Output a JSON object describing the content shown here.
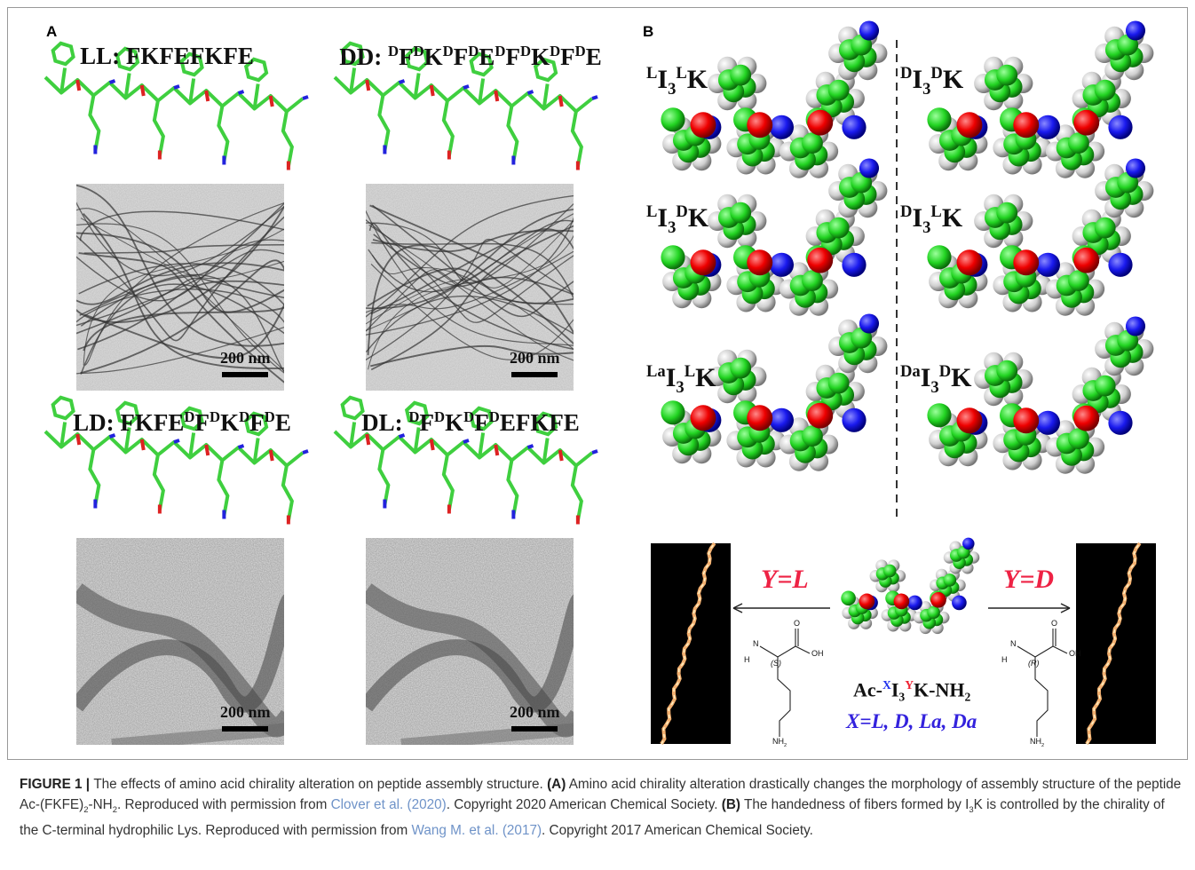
{
  "panel_a": {
    "label": "A",
    "peptides": [
      {
        "name": [
          {
            "text": "LL: FKFEFKFE"
          }
        ],
        "scale_bar": "200 nm"
      },
      {
        "name": [
          {
            "text": "DD: "
          },
          {
            "text": "D",
            "style": "sup"
          },
          {
            "text": "F"
          },
          {
            "text": "D",
            "style": "sup"
          },
          {
            "text": "K"
          },
          {
            "text": "D",
            "style": "sup"
          },
          {
            "text": "F"
          },
          {
            "text": "D",
            "style": "sup"
          },
          {
            "text": "E"
          },
          {
            "text": "D",
            "style": "sup"
          },
          {
            "text": "F"
          },
          {
            "text": "D",
            "style": "sup"
          },
          {
            "text": "K"
          },
          {
            "text": "D",
            "style": "sup"
          },
          {
            "text": "F"
          },
          {
            "text": "D",
            "style": "sup"
          },
          {
            "text": "E"
          }
        ],
        "scale_bar": "200 nm"
      },
      {
        "name": [
          {
            "text": "LD: FKFE"
          },
          {
            "text": "D",
            "style": "sup"
          },
          {
            "text": "F"
          },
          {
            "text": "D",
            "style": "sup"
          },
          {
            "text": "K"
          },
          {
            "text": "D",
            "style": "sup"
          },
          {
            "text": "F"
          },
          {
            "text": "D",
            "style": "sup"
          },
          {
            "text": "E"
          }
        ],
        "scale_bar": "200 nm"
      },
      {
        "name": [
          {
            "text": "DL: "
          },
          {
            "text": "D",
            "style": "sup"
          },
          {
            "text": "F"
          },
          {
            "text": "D",
            "style": "sup"
          },
          {
            "text": "K"
          },
          {
            "text": "D",
            "style": "sup"
          },
          {
            "text": "F"
          },
          {
            "text": "D",
            "style": "sup"
          },
          {
            "text": "EFKFE"
          }
        ],
        "scale_bar": "200 nm"
      }
    ]
  },
  "panel_b": {
    "label": "B",
    "models": [
      [
        {
          "text": "L",
          "style": "sup"
        },
        {
          "text": "I"
        },
        {
          "text": "3",
          "style": "sub"
        },
        {
          "text": "L",
          "style": "sup"
        },
        {
          "text": "K"
        }
      ],
      [
        {
          "text": "D",
          "style": "sup"
        },
        {
          "text": "I"
        },
        {
          "text": "3",
          "style": "sub"
        },
        {
          "text": "D",
          "style": "sup"
        },
        {
          "text": "K"
        }
      ],
      [
        {
          "text": "L",
          "style": "sup"
        },
        {
          "text": "I"
        },
        {
          "text": "3",
          "style": "sub"
        },
        {
          "text": "D",
          "style": "sup"
        },
        {
          "text": "K"
        }
      ],
      [
        {
          "text": "D",
          "style": "sup"
        },
        {
          "text": "I"
        },
        {
          "text": "3",
          "style": "sub"
        },
        {
          "text": "L",
          "style": "sup"
        },
        {
          "text": "K"
        }
      ],
      [
        {
          "text": "La",
          "style": "sup"
        },
        {
          "text": "I"
        },
        {
          "text": "3",
          "style": "sub"
        },
        {
          "text": "L",
          "style": "sup"
        },
        {
          "text": "K"
        }
      ],
      [
        {
          "text": "Da",
          "style": "sup"
        },
        {
          "text": "I"
        },
        {
          "text": "3",
          "style": "sub"
        },
        {
          "text": "D",
          "style": "sup"
        },
        {
          "text": "K"
        }
      ]
    ],
    "left_arrow": "Y=L",
    "right_arrow": "Y=D",
    "formula": [
      {
        "text": "Ac-"
      },
      {
        "text": "X",
        "style": "sup",
        "color": "#2233ee"
      },
      {
        "text": "I"
      },
      {
        "text": "3",
        "style": "sub"
      },
      {
        "text": "Y",
        "style": "sup",
        "color": "#ee2233"
      },
      {
        "text": "K-NH"
      },
      {
        "text": "2",
        "style": "sub"
      }
    ],
    "variants": "X=L, D, La, Da",
    "lysines": [
      {
        "h": "H",
        "n": "N",
        "stereo": "(S)",
        "o": "O",
        "oh": "OH",
        "amine": [
          {
            "text": "NH"
          },
          {
            "text": "2",
            "style": "sub"
          }
        ]
      },
      {
        "h": "H",
        "n": "N",
        "stereo": "(R)",
        "o": "O",
        "oh": "OH",
        "amine": [
          {
            "text": "NH"
          },
          {
            "text": "2",
            "style": "sub"
          }
        ]
      }
    ]
  },
  "caption": [
    {
      "text": "FIGURE 1 | ",
      "style": "bold"
    },
    {
      "text": "The effects of amino acid chirality alteration on peptide assembly structure. "
    },
    {
      "text": "(A)",
      "style": "bold"
    },
    {
      "text": " Amino acid chirality alteration drastically changes the morphology of assembly structure of the peptide Ac-(FKFE)"
    },
    {
      "text": "2",
      "style": "sub"
    },
    {
      "text": "-NH"
    },
    {
      "text": "2",
      "style": "sub"
    },
    {
      "text": ". Reproduced with permission from "
    },
    {
      "text": "Clover et al. (2020)",
      "style": "link"
    },
    {
      "text": ". Copyright 2020 American Chemical Society. "
    },
    {
      "text": "(B)",
      "style": "bold"
    },
    {
      "text": " The handedness of fibers formed by I"
    },
    {
      "text": "3",
      "style": "sub"
    },
    {
      "text": "K is controlled by the chirality of the C-terminal hydrophilic Lys. Reproduced with permission from "
    },
    {
      "text": "Wang M. et al. (2017)",
      "style": "link"
    },
    {
      "text": ". Copyright 2017 American Chemical Society."
    }
  ]
}
